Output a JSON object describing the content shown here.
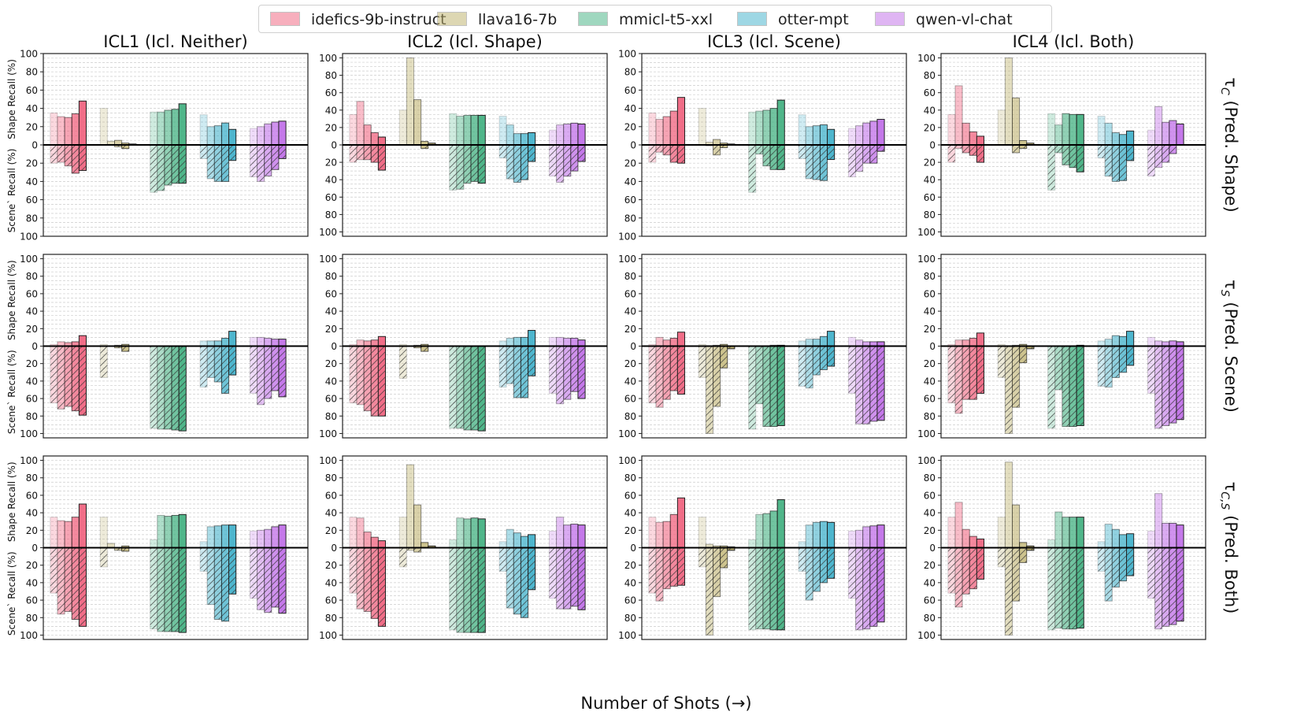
{
  "chart_data": {
    "type": "bar",
    "title": "",
    "xlabel": "Number of Shots (→)",
    "shape_ylabel": "Shape Recall (%)",
    "scene_ylabel": "Scene` Recall (%)",
    "ylim_top": [
      0,
      100
    ],
    "ylim_bottom": [
      0,
      100
    ],
    "yticks": [
      "0",
      "20",
      "40",
      "60",
      "80",
      "100"
    ],
    "columns": [
      "ICL1 (Icl. Neither)",
      "ICL2 (Icl. Shape)",
      "ICL3 (Icl. Scene)",
      "ICL4 (Icl. Both)"
    ],
    "rows": [
      {
        "symbol": "τ",
        "sub": "C",
        "suffix": " (Pred. Shape)"
      },
      {
        "symbol": "τ",
        "sub": "S",
        "suffix": " (Pred. Scene)"
      },
      {
        "symbol": "τ",
        "sub": "C,S",
        "suffix": " (Pred. Both)"
      }
    ],
    "models": [
      {
        "name": "idefics-9b-instruct",
        "color": "#f0627e"
      },
      {
        "name": "llava16-7b",
        "color": "#bdb06a"
      },
      {
        "name": "mmicl-t5-xxl",
        "color": "#41b080"
      },
      {
        "name": "otter-mpt",
        "color": "#3fb0ca"
      },
      {
        "name": "qwen-vl-chat",
        "color": "#c06ee8"
      }
    ],
    "panels": [
      [
        {
          "shape": [
            [
              35,
              31,
              30,
              34,
              48
            ],
            [
              40,
              4,
              5,
              2,
              1
            ],
            [
              36,
              36,
              38,
              39,
              45
            ],
            [
              33,
              20,
              21,
              24,
              17
            ],
            [
              18,
              20,
              23,
              25,
              26
            ]
          ],
          "scene": [
            [
              20,
              19,
              23,
              31,
              28
            ],
            [
              0,
              0,
              2,
              4,
              0
            ],
            [
              52,
              50,
              44,
              42,
              42
            ],
            [
              15,
              37,
              40,
              40,
              17
            ],
            [
              35,
              40,
              34,
              27,
              15
            ]
          ]
        },
        {
          "shape": [
            [
              35,
              50,
              23,
              14,
              9
            ],
            [
              40,
              100,
              52,
              4,
              2
            ],
            [
              36,
              33,
              34,
              34,
              34
            ],
            [
              33,
              23,
              13,
              13,
              14
            ],
            [
              17,
              23,
              24,
              25,
              24
            ]
          ],
          "scene": [
            [
              20,
              17,
              17,
              20,
              29
            ],
            [
              0,
              0,
              0,
              4,
              0
            ],
            [
              52,
              51,
              44,
              42,
              44
            ],
            [
              15,
              39,
              43,
              40,
              19
            ],
            [
              36,
              43,
              36,
              30,
              19
            ]
          ]
        },
        {
          "shape": [
            [
              35,
              28,
              31,
              37,
              52
            ],
            [
              40,
              3,
              6,
              2,
              1
            ],
            [
              36,
              37,
              38,
              40,
              49
            ],
            [
              33,
              20,
              21,
              22,
              17
            ],
            [
              18,
              21,
              24,
              26,
              28
            ]
          ],
          "scene": [
            [
              19,
              8,
              11,
              19,
              20
            ],
            [
              0,
              1,
              11,
              3,
              0
            ],
            [
              52,
              10,
              23,
              27,
              27
            ],
            [
              15,
              37,
              38,
              39,
              16
            ],
            [
              35,
              29,
              20,
              20,
              7
            ]
          ]
        },
        {
          "shape": [
            [
              35,
              68,
              25,
              15,
              10
            ],
            [
              40,
              100,
              54,
              5,
              2
            ],
            [
              36,
              23,
              36,
              35,
              35
            ],
            [
              33,
              25,
              14,
              12,
              16
            ],
            [
              17,
              44,
              26,
              28,
              24
            ]
          ],
          "scene": [
            [
              20,
              4,
              9,
              12,
              20
            ],
            [
              0,
              0,
              9,
              4,
              0
            ],
            [
              52,
              9,
              23,
              26,
              31
            ],
            [
              15,
              36,
              42,
              41,
              18
            ],
            [
              36,
              26,
              20,
              10,
              0
            ]
          ]
        }
      ],
      [
        {
          "shape": [
            [
              2,
              5,
              4,
              5,
              12
            ],
            [
              2,
              0,
              1,
              2,
              0
            ],
            [
              0,
              0,
              0,
              0,
              0
            ],
            [
              6,
              6,
              6,
              9,
              17
            ],
            [
              10,
              10,
              9,
              8,
              8
            ]
          ],
          "scene": [
            [
              65,
              72,
              69,
              74,
              79
            ],
            [
              36,
              0,
              2,
              6,
              0
            ],
            [
              94,
              95,
              95,
              96,
              97
            ],
            [
              47,
              36,
              41,
              54,
              33
            ],
            [
              54,
              67,
              60,
              51,
              58
            ]
          ]
        },
        {
          "shape": [
            [
              2,
              7,
              6,
              7,
              11
            ],
            [
              2,
              0,
              1,
              2,
              0
            ],
            [
              0,
              0,
              0,
              0,
              0
            ],
            [
              6,
              9,
              10,
              10,
              18
            ],
            [
              10,
              10,
              9,
              9,
              7
            ]
          ],
          "scene": [
            [
              65,
              67,
              74,
              80,
              80
            ],
            [
              37,
              0,
              2,
              6,
              0
            ],
            [
              94,
              94,
              96,
              96,
              97
            ],
            [
              47,
              43,
              59,
              59,
              34
            ],
            [
              54,
              66,
              61,
              52,
              60
            ]
          ]
        },
        {
          "shape": [
            [
              2,
              10,
              7,
              9,
              16
            ],
            [
              2,
              0,
              1,
              2,
              0
            ],
            [
              0,
              0,
              0,
              1,
              1
            ],
            [
              6,
              8,
              8,
              11,
              17
            ],
            [
              10,
              7,
              5,
              5,
              5
            ]
          ],
          "scene": [
            [
              65,
              70,
              61,
              51,
              55
            ],
            [
              36,
              100,
              69,
              25,
              3
            ],
            [
              95,
              66,
              92,
              92,
              91
            ],
            [
              46,
              48,
              33,
              27,
              23
            ],
            [
              54,
              89,
              89,
              86,
              85
            ]
          ]
        },
        {
          "shape": [
            [
              2,
              7,
              7,
              9,
              15
            ],
            [
              2,
              0,
              1,
              2,
              0
            ],
            [
              0,
              0,
              0,
              0,
              1
            ],
            [
              6,
              8,
              12,
              11,
              17
            ],
            [
              10,
              6,
              5,
              6,
              5
            ]
          ],
          "scene": [
            [
              65,
              77,
              61,
              61,
              54
            ],
            [
              36,
              100,
              70,
              19,
              3
            ],
            [
              94,
              50,
              92,
              92,
              91
            ],
            [
              46,
              47,
              36,
              30,
              22
            ],
            [
              54,
              94,
              91,
              88,
              84
            ]
          ]
        }
      ],
      [
        {
          "shape": [
            [
              35,
              31,
              30,
              35,
              50
            ],
            [
              35,
              5,
              0,
              2,
              0
            ],
            [
              9,
              37,
              36,
              37,
              38
            ],
            [
              7,
              24,
              25,
              26,
              26
            ],
            [
              19,
              20,
              21,
              24,
              26
            ]
          ],
          "scene": [
            [
              52,
              76,
              73,
              82,
              90
            ],
            [
              22,
              0,
              3,
              4,
              0
            ],
            [
              93,
              96,
              96,
              96,
              97
            ],
            [
              27,
              65,
              82,
              84,
              53
            ],
            [
              58,
              71,
              74,
              68,
              75
            ]
          ]
        },
        {
          "shape": [
            [
              35,
              34,
              18,
              12,
              8
            ],
            [
              35,
              95,
              49,
              6,
              2
            ],
            [
              9,
              34,
              33,
              34,
              33
            ],
            [
              7,
              21,
              17,
              13,
              15
            ],
            [
              19,
              35,
              26,
              27,
              26
            ]
          ],
          "scene": [
            [
              52,
              70,
              73,
              81,
              90
            ],
            [
              22,
              3,
              5,
              0,
              0
            ],
            [
              94,
              97,
              97,
              97,
              97
            ],
            [
              27,
              69,
              76,
              80,
              48
            ],
            [
              58,
              70,
              70,
              67,
              71
            ]
          ]
        },
        {
          "shape": [
            [
              35,
              29,
              30,
              38,
              57
            ],
            [
              35,
              4,
              2,
              2,
              1
            ],
            [
              9,
              38,
              39,
              42,
              55
            ],
            [
              7,
              26,
              29,
              30,
              29
            ],
            [
              19,
              20,
              24,
              25,
              26
            ]
          ],
          "scene": [
            [
              52,
              61,
              47,
              44,
              43
            ],
            [
              22,
              100,
              56,
              23,
              3
            ],
            [
              94,
              93,
              93,
              94,
              94
            ],
            [
              27,
              60,
              50,
              40,
              35
            ],
            [
              58,
              94,
              93,
              90,
              85
            ]
          ]
        },
        {
          "shape": [
            [
              35,
              52,
              21,
              13,
              10
            ],
            [
              35,
              98,
              49,
              6,
              2
            ],
            [
              9,
              41,
              35,
              35,
              35
            ],
            [
              7,
              27,
              21,
              15,
              16
            ],
            [
              19,
              62,
              28,
              28,
              26
            ]
          ],
          "scene": [
            [
              52,
              68,
              53,
              47,
              36
            ],
            [
              22,
              100,
              61,
              17,
              3
            ],
            [
              94,
              92,
              93,
              93,
              92
            ],
            [
              27,
              61,
              45,
              38,
              32
            ],
            [
              58,
              93,
              90,
              88,
              84
            ]
          ]
        }
      ]
    ]
  }
}
